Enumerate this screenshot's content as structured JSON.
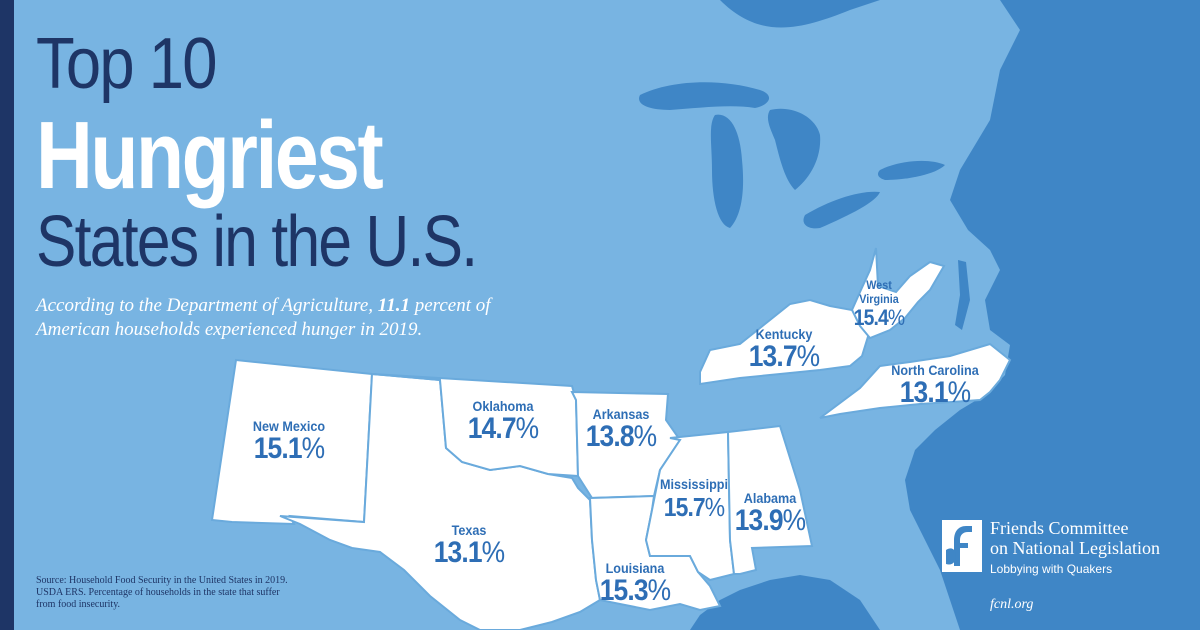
{
  "title": {
    "line1": "Top 10",
    "line2": "Hungriest",
    "line3": "States in the U.S."
  },
  "subtitle": {
    "before": "According to the Department of Agriculture, ",
    "value": "11.1",
    "after": " percent of American households experienced hunger in 2019."
  },
  "source": "Source: Household Food Security in the United States in 2019. USDA ERS. Percentage of households in the state that suffer from food insecurity.",
  "states": [
    {
      "name": "New Mexico",
      "value": "15.1",
      "unit": "%"
    },
    {
      "name": "Oklahoma",
      "value": "14.7",
      "unit": "%"
    },
    {
      "name": "Arkansas",
      "value": "13.8",
      "unit": "%"
    },
    {
      "name": "Texas",
      "value": "13.1",
      "unit": "%"
    },
    {
      "name": "Louisiana",
      "value": "15.3",
      "unit": "%"
    },
    {
      "name": "Mississippi",
      "value": "15.7",
      "unit": "%"
    },
    {
      "name": "Alabama",
      "value": "13.9",
      "unit": "%"
    },
    {
      "name": "Kentucky",
      "value": "13.7",
      "unit": "%"
    },
    {
      "name": "West Virginia",
      "value": "15.4",
      "unit": "%"
    },
    {
      "name": "North Carolina",
      "value": "13.1",
      "unit": "%"
    }
  ],
  "org": {
    "name_line1": "Friends Committee",
    "name_line2": "on National Legislation",
    "tagline": "Lobbying with Quakers",
    "url": "fcnl.org"
  },
  "colors": {
    "ocean": "#3f86c6",
    "land": "#78b4e2",
    "highlight": "#ffffff",
    "border": "#6aaadc",
    "label": "#2e6eb5",
    "title_dark": "#1e3566"
  }
}
